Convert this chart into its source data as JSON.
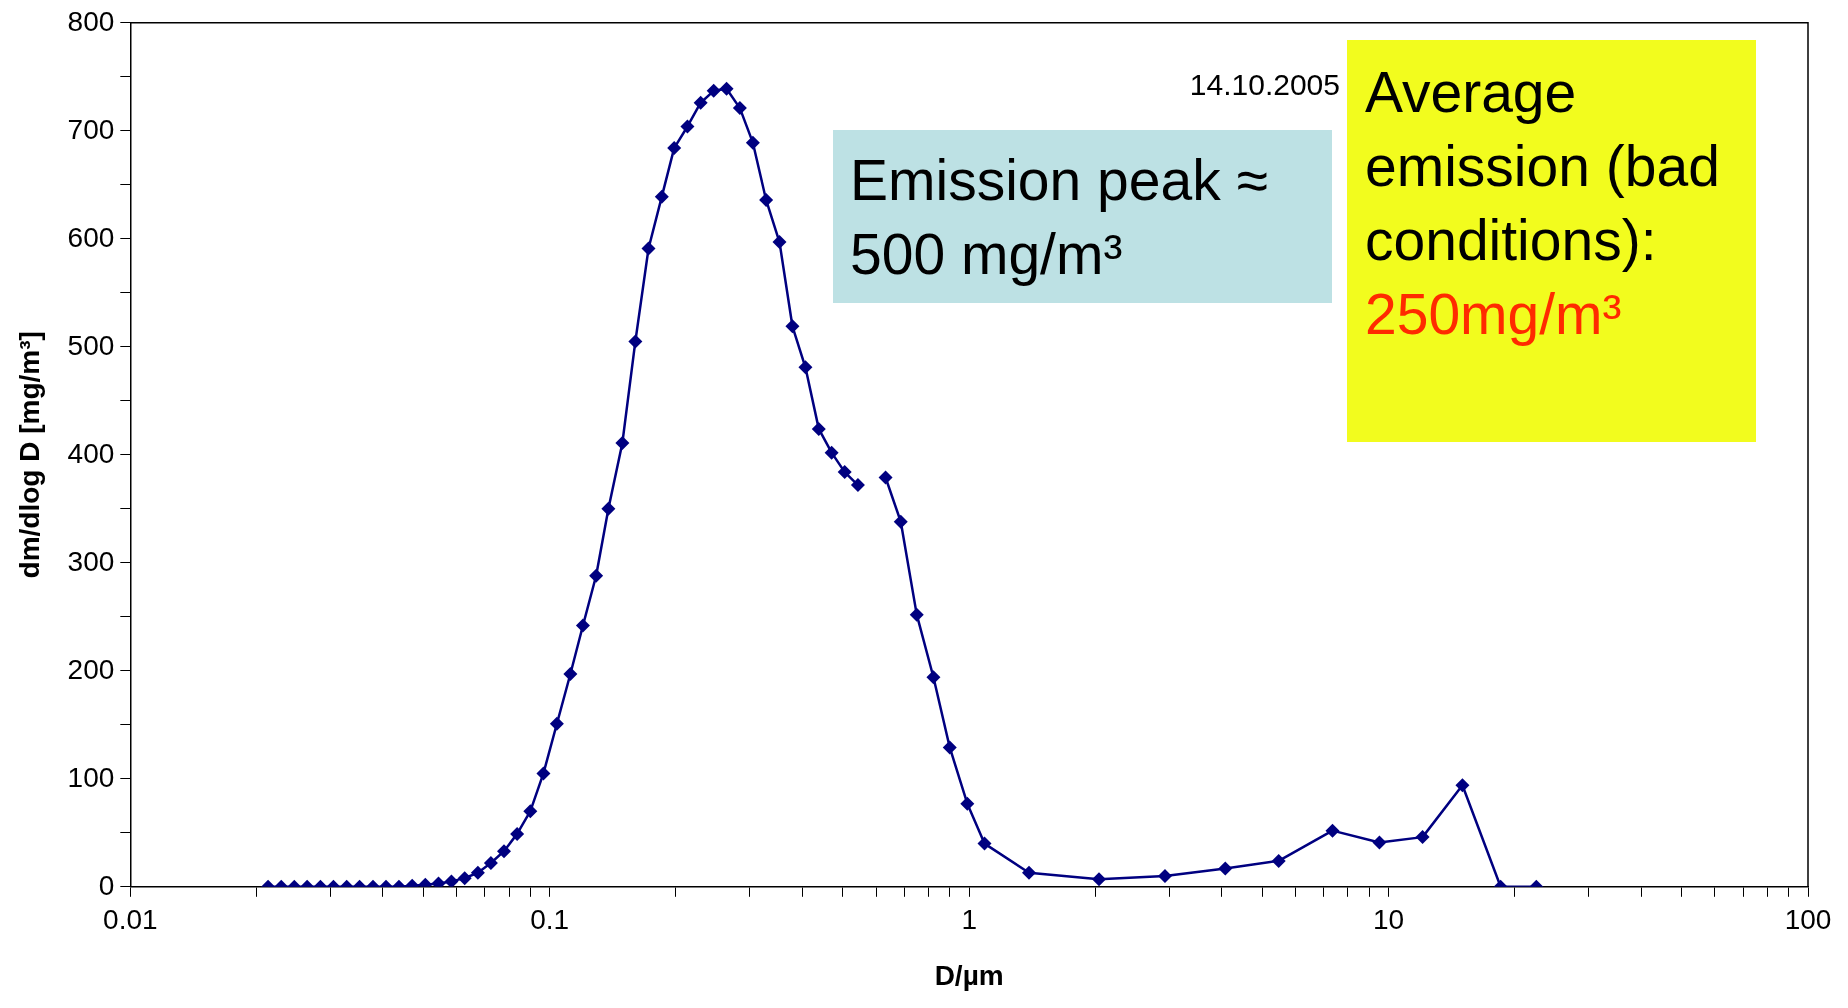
{
  "chart_data": {
    "type": "line",
    "xlabel": "D/µm",
    "ylabel": "dm/dlog D [mg/m³]",
    "annotations": [
      "14.10.2005",
      "Emission peak ≈ 500 mg/m³",
      "Average emission (bad conditions):",
      "250mg/m³"
    ],
    "log": "x",
    "xlim": [
      0.01,
      100
    ],
    "ylim": [
      0,
      800
    ],
    "xticks": [
      0.01,
      {
        "value": 0.02,
        "label": null
      },
      {
        "value": 0.03,
        "label": null
      },
      {
        "value": 0.04,
        "label": null
      },
      {
        "value": 0.05,
        "label": null
      },
      {
        "value": 0.06,
        "label": null
      },
      {
        "value": 0.07,
        "label": null
      },
      {
        "value": 0.08,
        "label": null
      },
      {
        "value": 0.09,
        "label": null
      },
      0.1,
      {
        "value": 0.2,
        "label": null
      },
      {
        "value": 0.3,
        "label": null
      },
      {
        "value": 0.4,
        "label": null
      },
      {
        "value": 0.5,
        "label": null
      },
      {
        "value": 0.6,
        "label": null
      },
      {
        "value": 0.7,
        "label": null
      },
      {
        "value": 0.8,
        "label": null
      },
      {
        "value": 0.9,
        "label": null
      },
      1,
      {
        "value": 2,
        "label": null
      },
      {
        "value": 3,
        "label": null
      },
      {
        "value": 4,
        "label": null
      },
      {
        "value": 5,
        "label": null
      },
      {
        "value": 6,
        "label": null
      },
      {
        "value": 7,
        "label": null
      },
      {
        "value": 8,
        "label": null
      },
      {
        "value": 9,
        "label": null
      },
      10,
      {
        "value": 20,
        "label": null
      },
      {
        "value": 30,
        "label": null
      },
      {
        "value": 40,
        "label": null
      },
      {
        "value": 50,
        "label": null
      },
      {
        "value": 60,
        "label": null
      },
      {
        "value": 70,
        "label": null
      },
      {
        "value": 80,
        "label": null
      },
      {
        "value": 90,
        "label": null
      },
      100
    ],
    "yticks": [
      0,
      {
        "value": 50,
        "label": null
      },
      100,
      {
        "value": 150,
        "label": null
      },
      200,
      {
        "value": 250,
        "label": null
      },
      300,
      {
        "value": 350,
        "label": null
      },
      400,
      {
        "value": 450,
        "label": null
      },
      500,
      {
        "value": 550,
        "label": null
      },
      600,
      {
        "value": 650,
        "label": null
      },
      700,
      {
        "value": 750,
        "label": null
      },
      800
    ],
    "grid": false,
    "legend": false,
    "marker": "diamond",
    "line_style": "solid",
    "series": [
      {
        "color": "#000080",
        "x": [
          0.0213,
          0.0229,
          0.0246,
          0.0264,
          0.0284,
          0.0305,
          0.0328,
          0.0352,
          0.0379,
          0.0407,
          0.0437,
          0.047,
          0.0505,
          0.0543,
          0.0583,
          0.0627,
          0.0674,
          0.0724,
          0.0778,
          0.0836,
          0.0899,
          0.0966,
          0.104,
          0.112,
          0.12,
          0.129,
          0.138,
          0.149,
          0.16,
          0.172,
          0.185,
          0.198,
          0.213,
          0.229,
          0.246,
          0.264,
          0.284,
          0.305,
          0.328,
          0.353,
          0.379,
          0.407,
          0.438,
          0.47,
          0.505,
          0.543,
          0.59,
          0.632,
          0.687,
          0.75,
          0.822,
          0.899,
          0.99,
          1.088,
          1.389,
          2.04,
          2.93,
          4.08,
          5.47,
          7.35,
          9.51,
          12.05,
          15.0,
          18.5,
          22.5
        ],
        "values": [
          0,
          0,
          0,
          0,
          0,
          0,
          0,
          0,
          0,
          0,
          0,
          1,
          2,
          3,
          5,
          8,
          13,
          22,
          33,
          49,
          70,
          105,
          151,
          197,
          242,
          288,
          350,
          411,
          505,
          591,
          639,
          684,
          704,
          726,
          737,
          739,
          721,
          689,
          636,
          597,
          519,
          481,
          424,
          402,
          384,
          372,
          null,
          379,
          338,
          252,
          194,
          129,
          77,
          40,
          13,
          7,
          10,
          17,
          24,
          52,
          41,
          46,
          94,
          0,
          0
        ]
      }
    ]
  }
}
